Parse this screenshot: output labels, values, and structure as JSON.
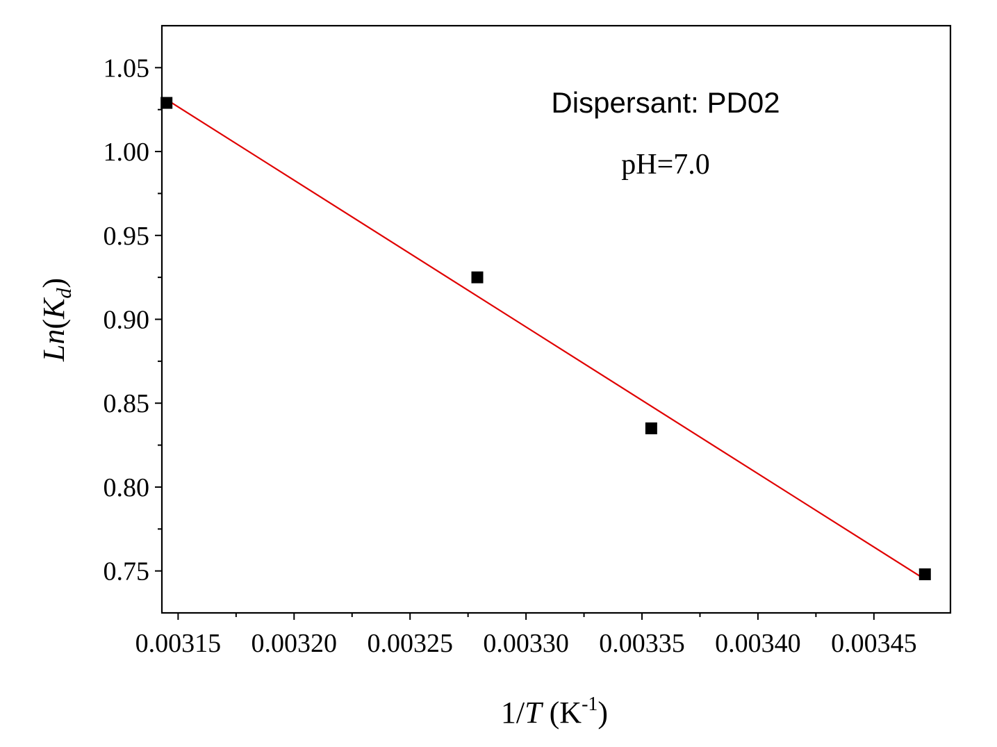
{
  "chart_data": {
    "type": "scatter",
    "title": "",
    "xlabel": "1/T (K-1)",
    "xlabel_parts": {
      "prefix": "1/",
      "var": "T",
      "open": " (K",
      "sup": "-1",
      "close": ")"
    },
    "ylabel": "Ln(Kd)",
    "ylabel_parts": {
      "ln": "Ln",
      "open": "(",
      "k": "K",
      "sub": "d",
      "close": ")"
    },
    "xlim": [
      0.003143,
      0.003483
    ],
    "ylim": [
      0.725,
      1.075
    ],
    "x_ticks": [
      0.00315,
      0.0032,
      0.00325,
      0.0033,
      0.00335,
      0.0034,
      0.00345
    ],
    "x_tick_labels": [
      "0.00315",
      "0.00320",
      "0.00325",
      "0.00330",
      "0.00335",
      "0.00340",
      "0.00345"
    ],
    "y_ticks": [
      0.75,
      0.8,
      0.85,
      0.9,
      0.95,
      1.0,
      1.05
    ],
    "y_tick_labels": [
      "0.75",
      "0.80",
      "0.85",
      "0.90",
      "0.95",
      "1.00",
      "1.05"
    ],
    "series": [
      {
        "name": "data",
        "marker": "square",
        "color": "#000000",
        "x": [
          0.003145,
          0.003279,
          0.003354,
          0.003472
        ],
        "y": [
          1.029,
          0.925,
          0.835,
          0.748
        ]
      }
    ],
    "fit_line": {
      "name": "linear fit",
      "color": "#e00000",
      "x": [
        0.003145,
        0.003472
      ],
      "y": [
        1.031,
        0.745
      ]
    },
    "annotations": [
      "Dispersant: PD02",
      "pH=7.0"
    ],
    "grid": false
  }
}
